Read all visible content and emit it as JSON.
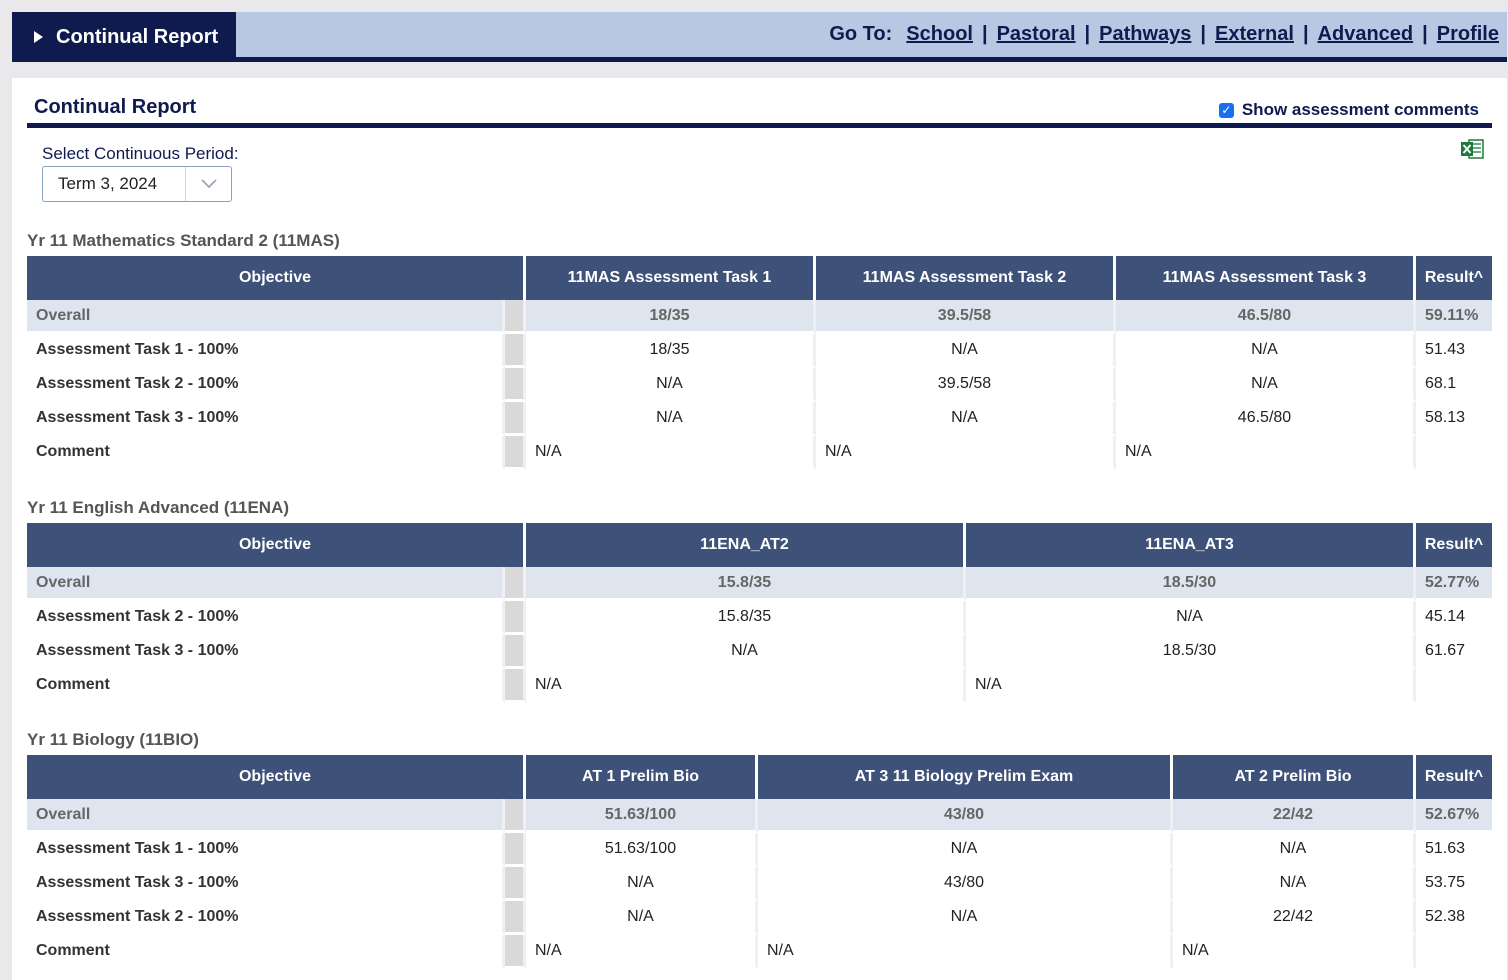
{
  "header": {
    "tab_label": "Continual Report",
    "goto_label": "Go To:",
    "links": [
      "School",
      "Pastoral",
      "Pathways",
      "External",
      "Advanced",
      "Profile"
    ],
    "separator": "|"
  },
  "panel": {
    "title": "Continual Report",
    "show_comments_label": "Show assessment comments",
    "show_comments_checked": true,
    "period_label": "Select Continuous Period:",
    "period_value": "Term 3, 2024",
    "export_icon": "excel-icon"
  },
  "courses": [
    {
      "title": "Yr 11 Mathematics Standard 2 (11MAS)",
      "objective_header": "Objective",
      "result_header": "Result^",
      "task_headers": [
        "11MAS Assessment Task 1",
        "11MAS Assessment Task 2",
        "11MAS Assessment Task 3"
      ],
      "overall": {
        "label": "Overall",
        "values": [
          "18/35",
          "39.5/58",
          "46.5/80"
        ],
        "result": "59.11%"
      },
      "rows": [
        {
          "label": "Assessment Task 1 - 100%",
          "values": [
            "18/35",
            "N/A",
            "N/A"
          ],
          "result": "51.43"
        },
        {
          "label": "Assessment Task 2 - 100%",
          "values": [
            "N/A",
            "39.5/58",
            "N/A"
          ],
          "result": "68.1"
        },
        {
          "label": "Assessment Task 3 - 100%",
          "values": [
            "N/A",
            "N/A",
            "46.5/80"
          ],
          "result": "58.13"
        }
      ],
      "comment": {
        "label": "Comment",
        "values": [
          "N/A",
          "N/A",
          "N/A"
        ]
      }
    },
    {
      "title": "Yr 11 English Advanced (11ENA)",
      "objective_header": "Objective",
      "result_header": "Result^",
      "task_headers": [
        "11ENA_AT2",
        "11ENA_AT3"
      ],
      "overall": {
        "label": "Overall",
        "values": [
          "15.8/35",
          "18.5/30"
        ],
        "result": "52.77%"
      },
      "rows": [
        {
          "label": "Assessment Task 2 - 100%",
          "values": [
            "15.8/35",
            "N/A"
          ],
          "result": "45.14"
        },
        {
          "label": "Assessment Task 3 - 100%",
          "values": [
            "N/A",
            "18.5/30"
          ],
          "result": "61.67"
        }
      ],
      "comment": {
        "label": "Comment",
        "values": [
          "N/A",
          "N/A"
        ]
      }
    },
    {
      "title": "Yr 11 Biology (11BIO)",
      "objective_header": "Objective",
      "result_header": "Result^",
      "task_headers": [
        "AT 1 Prelim Bio",
        "AT 3 11 Biology Prelim Exam",
        "AT 2 Prelim Bio"
      ],
      "overall": {
        "label": "Overall",
        "values": [
          "51.63/100",
          "43/80",
          "22/42"
        ],
        "result": "52.67%"
      },
      "rows": [
        {
          "label": "Assessment Task 1 - 100%",
          "values": [
            "51.63/100",
            "N/A",
            "N/A"
          ],
          "result": "51.63"
        },
        {
          "label": "Assessment Task 3 - 100%",
          "values": [
            "N/A",
            "43/80",
            "N/A"
          ],
          "result": "53.75"
        },
        {
          "label": "Assessment Task 2 - 100%",
          "values": [
            "N/A",
            "N/A",
            "22/42"
          ],
          "result": "52.38"
        }
      ],
      "comment": {
        "label": "Comment",
        "values": [
          "N/A",
          "N/A",
          "N/A"
        ]
      }
    }
  ]
}
